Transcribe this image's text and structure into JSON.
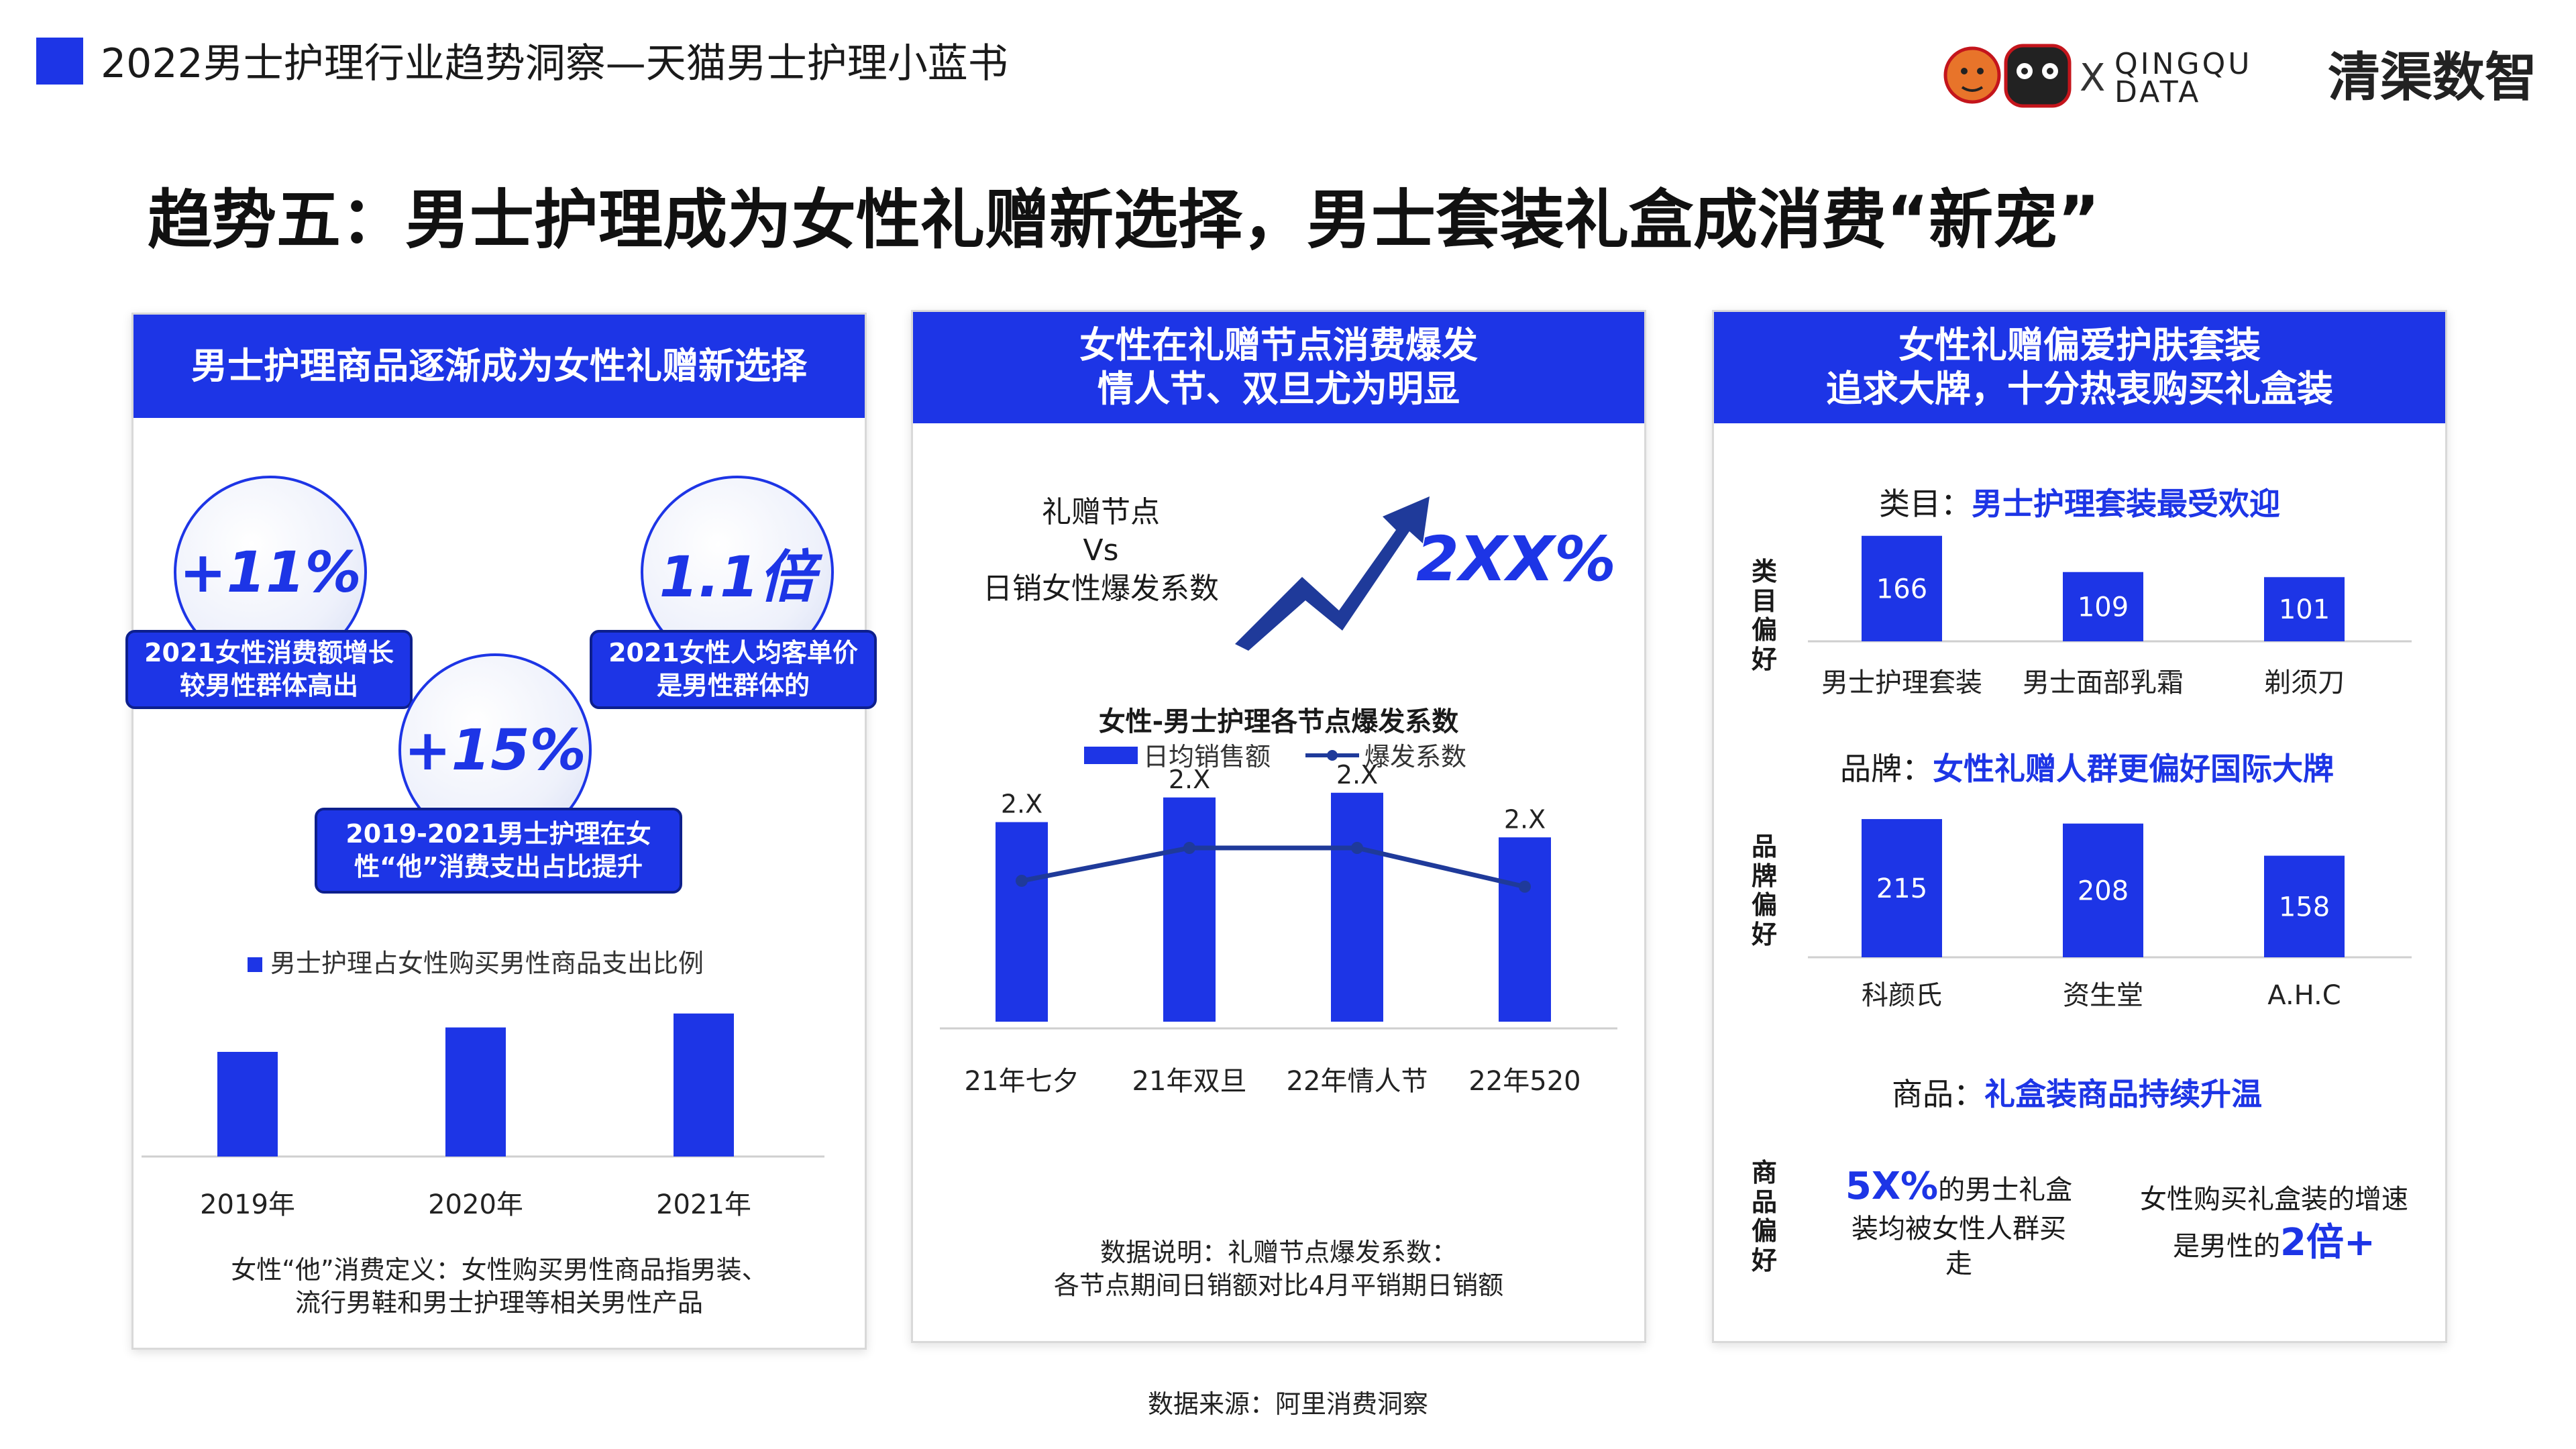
{
  "header": {
    "title": "2022男士护理行业趋势洞察—天猫男士护理小蓝书",
    "logo_sep": "X",
    "logo_brand_en_1": "QINGQU",
    "logo_brand_en_2": "DATA",
    "logo_brand_cn": "清渠数智"
  },
  "main_title": "趋势五：男士护理成为女性礼赠新选择，男士套装礼盒成消费“新宠”",
  "panel1": {
    "head": "男士护理商品逐渐成为女性礼赠新选择",
    "stats": [
      {
        "value": "+11%",
        "label_1": "2021女性消费额增长",
        "label_2": "较男性群体高出"
      },
      {
        "value": "1.1倍",
        "label_1": "2021女性人均客单价",
        "label_2": "是男性群体的"
      },
      {
        "value": "+15%",
        "label_1": "2019-2021男士护理在女",
        "label_2": "性“他”消费支出占比提升"
      }
    ],
    "legend": "男士护理占女性购买男性商品支出比例",
    "note_1": "女性“他”消费定义：女性购买男性商品指男装、",
    "note_2": "流行男鞋和男士护理等相关男性产品"
  },
  "panel2": {
    "head_1": "女性在礼赠节点消费爆发",
    "head_2": "情人节、双旦尤为明显",
    "kpi_label_1": "礼赠节点",
    "kpi_label_2": "Vs",
    "kpi_label_3": "日销女性爆发系数",
    "kpi_value": "2XX%",
    "note_1": "数据说明：礼赠节点爆发系数：",
    "note_2": "各节点期间日销额对比4月平销期日销额"
  },
  "panel3": {
    "head_1": "女性礼赠偏爱护肤套装",
    "head_2": "追求大牌，十分热衷购买礼盒装",
    "section1_prefix": "类目：",
    "section1_title": "男士护理套装最受欢迎",
    "section1_side": [
      "类",
      "目",
      "偏",
      "好"
    ],
    "section2_prefix": "品牌：",
    "section2_title": "女性礼赠人群更偏好国际大牌",
    "section2_side": [
      "品",
      "牌",
      "偏",
      "好"
    ],
    "section3_prefix": "商品：",
    "section3_title": "礼盒装商品持续升温",
    "section3_side": [
      "商",
      "品",
      "偏",
      "好"
    ],
    "goods_left_highlight": "5X%",
    "goods_left_1": "的男士礼盒",
    "goods_left_2": "装均被女性人群买",
    "goods_left_3": "走",
    "goods_right_1": "女性购买礼盒装的增速",
    "goods_right_2": "是男性的",
    "goods_right_highlight": "2倍+"
  },
  "footer": "数据来源：阿里消费洞察",
  "colors": {
    "accent": "#1d35e6",
    "dark_line": "#1f3a9a"
  },
  "chart_data": [
    {
      "type": "bar",
      "title": "",
      "categories": [
        "2019年",
        "2020年",
        "2021年"
      ],
      "series": [
        {
          "name": "男士护理占女性购买男性商品支出比例",
          "values": [
            0.6,
            0.74,
            0.82
          ]
        }
      ],
      "ylim": [
        0,
        1
      ],
      "grid": false,
      "legend": "top"
    },
    {
      "type": "bar",
      "title": "女性-男士护理各节点爆发系数",
      "categories": [
        "21年七夕",
        "21年双旦",
        "22年情人节",
        "22年520"
      ],
      "series": [
        {
          "name": "日均销售额",
          "values": [
            0.85,
            0.955,
            0.975,
            0.785
          ]
        },
        {
          "name": "爆发系数",
          "values": [
            0.6,
            0.74,
            0.74,
            0.575
          ],
          "type": "line"
        }
      ],
      "data_labels": [
        "2.X",
        "2.X",
        "2.X",
        "2.X"
      ],
      "ylim": [
        0,
        1.2
      ],
      "grid": false,
      "legend": "top"
    },
    {
      "type": "bar",
      "title": "男士护理套装最受欢迎",
      "categories": [
        "男士护理套装",
        "男士面部乳霜",
        "剃须刀"
      ],
      "values": [
        166,
        109,
        101
      ],
      "ylim": [
        0,
        190
      ]
    },
    {
      "type": "bar",
      "title": "女性礼赠人群更偏好国际大牌",
      "categories": [
        "科颜氏",
        "资生堂",
        "A.H.C"
      ],
      "values": [
        215,
        208,
        158
      ],
      "ylim": [
        0,
        240
      ]
    }
  ]
}
